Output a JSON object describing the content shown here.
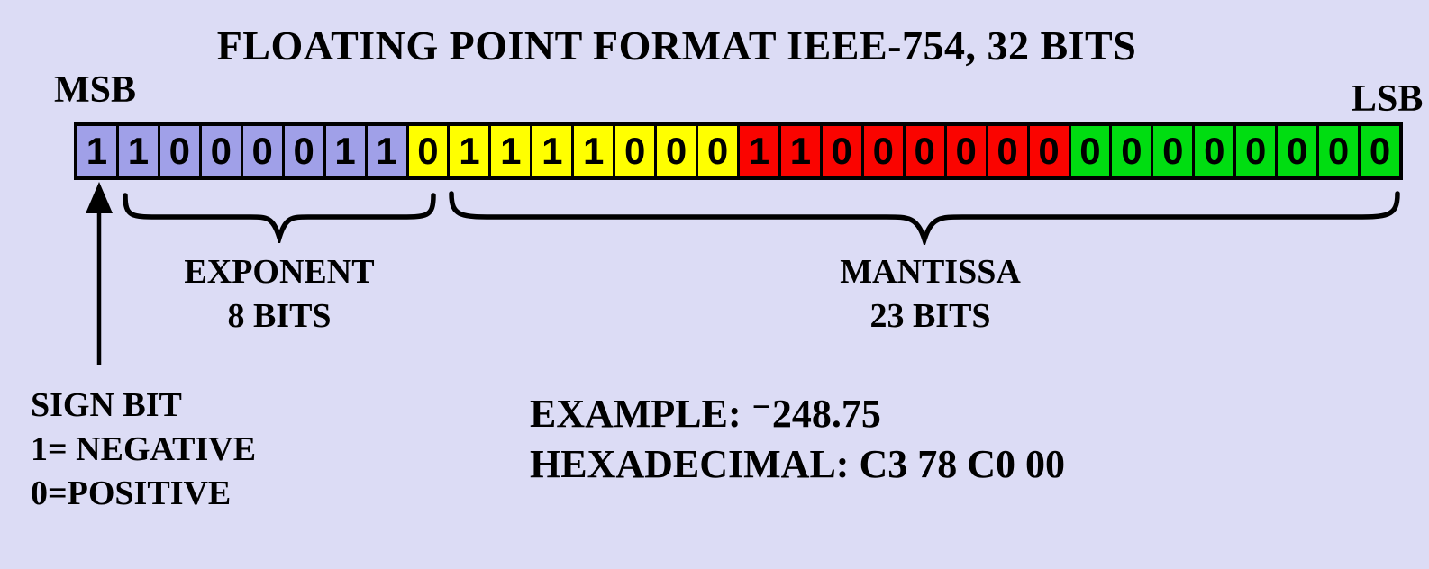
{
  "title": "FLOATING POINT FORMAT IEEE-754, 32 BITS",
  "labels": {
    "msb": "MSB",
    "lsb": "LSB",
    "exponent_line1": "EXPONENT",
    "exponent_line2": "8 BITS",
    "mantissa_line1": "MANTISSA",
    "mantissa_line2": "23 BITS",
    "sign_line1": "SIGN BIT",
    "sign_line2": "1= NEGATIVE",
    "sign_line3": "0=POSITIVE",
    "example": "EXAMPLE: ⁻248.75",
    "hexadecimal": "HEXADECIMAL: C3 78 C0 00"
  },
  "colors": {
    "background": "#dcdcf5",
    "byte1_sign_exponent": "#a0a0e8",
    "byte2": "#ffff00",
    "byte3": "#fa0400",
    "byte4": "#00dd11",
    "border": "#000000"
  },
  "bits": [
    {
      "value": "1",
      "color": "#a0a0e8"
    },
    {
      "value": "1",
      "color": "#a0a0e8"
    },
    {
      "value": "0",
      "color": "#a0a0e8"
    },
    {
      "value": "0",
      "color": "#a0a0e8"
    },
    {
      "value": "0",
      "color": "#a0a0e8"
    },
    {
      "value": "0",
      "color": "#a0a0e8"
    },
    {
      "value": "1",
      "color": "#a0a0e8"
    },
    {
      "value": "1",
      "color": "#a0a0e8"
    },
    {
      "value": "0",
      "color": "#ffff00"
    },
    {
      "value": "1",
      "color": "#ffff00"
    },
    {
      "value": "1",
      "color": "#ffff00"
    },
    {
      "value": "1",
      "color": "#ffff00"
    },
    {
      "value": "1",
      "color": "#ffff00"
    },
    {
      "value": "0",
      "color": "#ffff00"
    },
    {
      "value": "0",
      "color": "#ffff00"
    },
    {
      "value": "0",
      "color": "#ffff00"
    },
    {
      "value": "1",
      "color": "#fa0400"
    },
    {
      "value": "1",
      "color": "#fa0400"
    },
    {
      "value": "0",
      "color": "#fa0400"
    },
    {
      "value": "0",
      "color": "#fa0400"
    },
    {
      "value": "0",
      "color": "#fa0400"
    },
    {
      "value": "0",
      "color": "#fa0400"
    },
    {
      "value": "0",
      "color": "#fa0400"
    },
    {
      "value": "0",
      "color": "#fa0400"
    },
    {
      "value": "0",
      "color": "#00dd11"
    },
    {
      "value": "0",
      "color": "#00dd11"
    },
    {
      "value": "0",
      "color": "#00dd11"
    },
    {
      "value": "0",
      "color": "#00dd11"
    },
    {
      "value": "0",
      "color": "#00dd11"
    },
    {
      "value": "0",
      "color": "#00dd11"
    },
    {
      "value": "0",
      "color": "#00dd11"
    },
    {
      "value": "0",
      "color": "#00dd11"
    }
  ]
}
